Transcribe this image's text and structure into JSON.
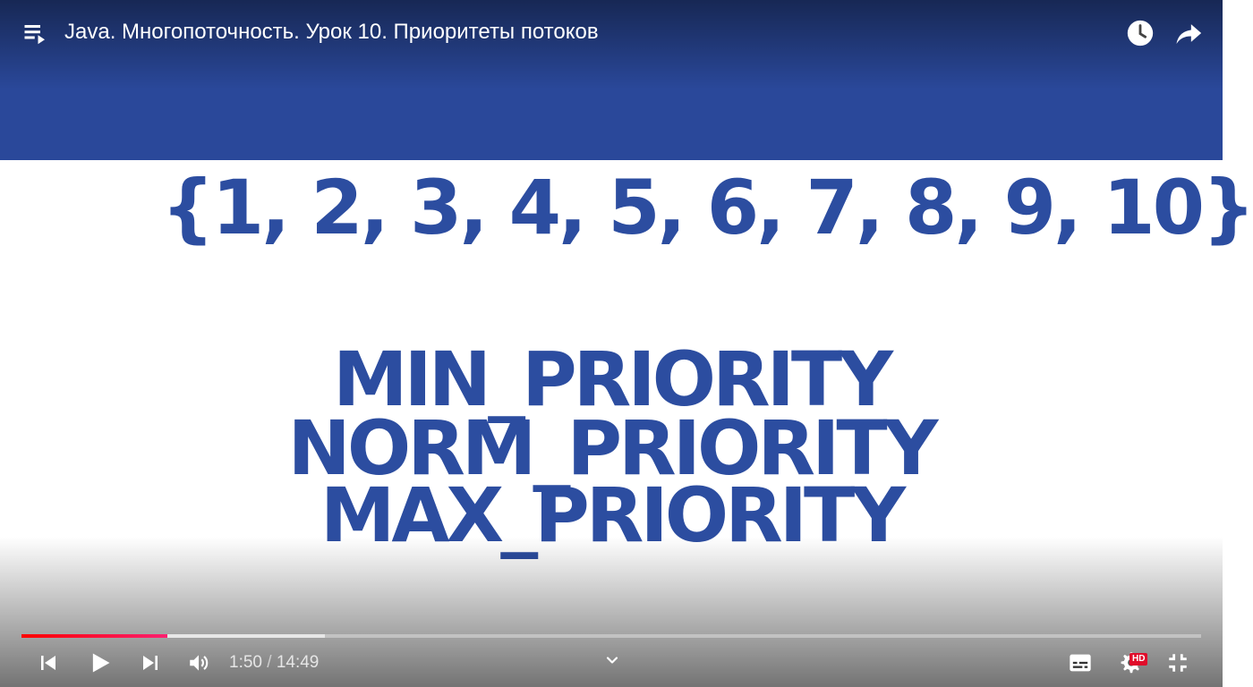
{
  "top_bar": {
    "title": "Java. Многопоточность. Урок 10. Приоритеты потоков",
    "playlist_icon": "playlist-icon",
    "watch_later_icon": "watch-later-icon",
    "share_icon": "share-icon"
  },
  "video": {
    "numbers_line": "{1, 2, 3, 4, 5, 6, 7, 8, 9, 10}",
    "priorities": [
      "MIN_PRIORITY",
      "NORM_PRIORITY",
      "MAX_PRIORITY"
    ],
    "banner_color": "#2a489a",
    "text_color": "#2c4da0"
  },
  "controls": {
    "current_time": "1:50",
    "separator": "/",
    "duration": "14:49",
    "hd_label": "HD",
    "played_fraction": 0.1237,
    "buffered_fraction": 0.2573,
    "accent_color": "#ff0033"
  }
}
